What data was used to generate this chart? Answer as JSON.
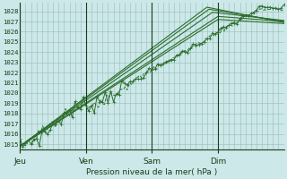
{
  "xlabel": "Pression niveau de la mer( hPa )",
  "bg_color": "#cce8e8",
  "grid_color_major": "#99bbbb",
  "grid_color_minor": "#bbdddd",
  "line_color": "#2d6e2d",
  "ymin": 1014.5,
  "ymax": 1028.8,
  "yticks": [
    1015,
    1016,
    1017,
    1018,
    1019,
    1020,
    1021,
    1022,
    1023,
    1024,
    1025,
    1026,
    1027,
    1028
  ],
  "day_labels": [
    "Jeu",
    "Ven",
    "Sam",
    "Dim"
  ],
  "day_positions": [
    0,
    96,
    192,
    288
  ],
  "total_steps": 384,
  "figsize": [
    3.2,
    2.0
  ],
  "dpi": 100
}
